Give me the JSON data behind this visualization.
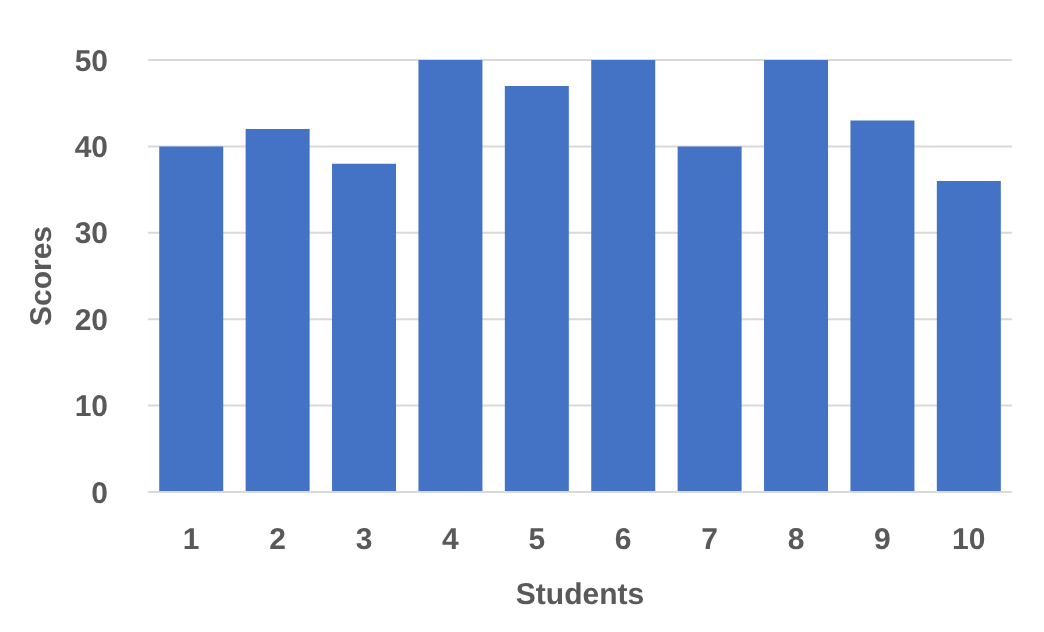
{
  "chart_data": {
    "type": "bar",
    "xlabel": "Students",
    "ylabel": "Scores",
    "categories": [
      "1",
      "2",
      "3",
      "4",
      "5",
      "6",
      "7",
      "8",
      "9",
      "10"
    ],
    "values": [
      40,
      42,
      38,
      50,
      47,
      50,
      40,
      50,
      43,
      36
    ],
    "color": "#4472c4",
    "ylim": [
      0,
      50
    ],
    "yticks": [
      0,
      10,
      20,
      30,
      40,
      50
    ],
    "grid": "y"
  }
}
